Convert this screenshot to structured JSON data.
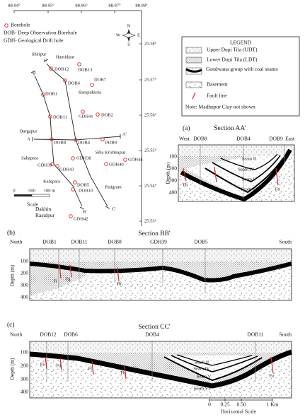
{
  "map": {
    "lon_labels": [
      "88.94°",
      "88.95°",
      "88.96°",
      "88.97°",
      "88.98°"
    ],
    "lat_labels": [
      "25.58°",
      "25.57°",
      "25.56°",
      "25.55°",
      "25.54°",
      "25.53°"
    ],
    "legend": {
      "borehole": "Borehole",
      "dob": "DOB- Deep Observation Borehole",
      "gdh": "GDH- Geological Drill hole"
    },
    "north": {
      "n": "N",
      "s": "S",
      "e": "E",
      "w": "W"
    },
    "places": [
      "Sherpur",
      "Hamidpur",
      "Barapukuria",
      "Durgapur",
      "Sahapara",
      "Siba Krishnapur",
      "Kalupara",
      "Patigram",
      "Dakhin Rasulpur"
    ],
    "boreholes": [
      "DOB12",
      "DOB13",
      "DOB6",
      "DOB7",
      "DOB1",
      "GDH41",
      "DOB2",
      "DOB11",
      "DOB8",
      "DOB4",
      "DOB9",
      "GDH38",
      "GDH39",
      "GDH43",
      "GDH40",
      "GDH44",
      "DOB5",
      "DOB10",
      "GDH42"
    ],
    "section_ends": [
      "C",
      "B",
      "A",
      "A'",
      "B'",
      "C'"
    ],
    "scale": {
      "ticks": [
        "0",
        "500",
        "100 m"
      ],
      "title": "Scale"
    }
  },
  "legend": {
    "title": "LEGEND",
    "items": [
      "Upper Dupi Tila (UDT)",
      "Lower Dupi Tila (LDT)",
      "Gondwana group with coal seams",
      "Basement",
      "Fault line"
    ],
    "note": "Note: Madhupur Clay not shown"
  },
  "sections": [
    {
      "tag": "(a)",
      "title": "Section AA'",
      "ends": [
        "West",
        "East"
      ],
      "boreholes": [
        "DOB8",
        "DOB4",
        "DOB9"
      ],
      "depth_label": "Depth (m)",
      "depth_ticks": [
        "100",
        "200",
        "300",
        "400"
      ],
      "seams": [
        "Seam II",
        "Seam IV",
        "Seam V",
        "Seam VI"
      ],
      "faults": [
        "Fb",
        "Fa"
      ]
    },
    {
      "tag": "(b)",
      "title": "Section BB'",
      "ends": [
        "North",
        "South"
      ],
      "boreholes": [
        "DOB1",
        "DOB11",
        "DOB8",
        "GDH39",
        "DOB5"
      ],
      "depth_label": "Depth (m)",
      "depth_ticks": [
        "100",
        "200",
        "300",
        "400"
      ],
      "seams": [],
      "faults": [
        "Fi",
        "Fg",
        "Fh"
      ]
    },
    {
      "tag": "(c)",
      "title": "Section CC'",
      "ends": [
        "North",
        "South"
      ],
      "boreholes": [
        "DOB12",
        "DOB6",
        "DOB4",
        "DOB11"
      ],
      "depth_label": "Depth (m)",
      "depth_ticks": [
        "100",
        "200",
        "300",
        "400"
      ],
      "seams": [
        "Seam II",
        "Seam IV",
        "Seam V",
        "Seam VI"
      ],
      "faults": [
        "Fe",
        "Fd",
        "Fc",
        "Fb",
        "Fa"
      ]
    }
  ],
  "horizontal_scale": {
    "ticks": [
      "0",
      "0.25",
      "0.50",
      "1 Km"
    ],
    "title": "Horizontal Scale"
  }
}
